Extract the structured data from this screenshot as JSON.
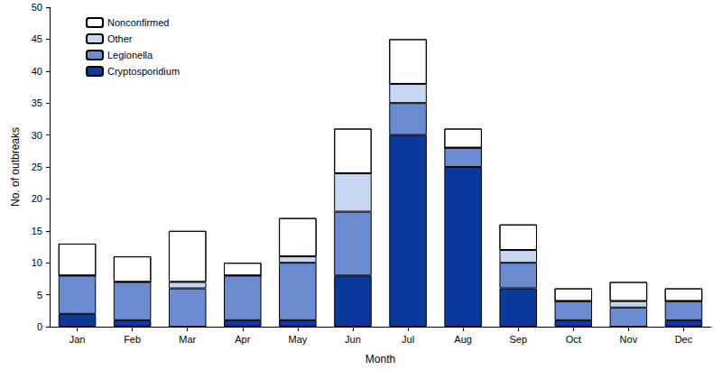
{
  "chart_data": {
    "type": "bar",
    "stacked": true,
    "x_label": "Month",
    "y_label": "No. of outbreaks",
    "categories": [
      "Jan",
      "Feb",
      "Mar",
      "Apr",
      "May",
      "Jun",
      "Jul",
      "Aug",
      "Sep",
      "Oct",
      "Nov",
      "Dec"
    ],
    "series": [
      {
        "name": "Cryptosporidium",
        "color": "#0b3a9c",
        "values": [
          2,
          1,
          0,
          1,
          1,
          8,
          30,
          25,
          6,
          1,
          0,
          1
        ]
      },
      {
        "name": "Legionella",
        "color": "#6a8bd0",
        "values": [
          6,
          6,
          6,
          7,
          9,
          10,
          5,
          3,
          4,
          3,
          3,
          3
        ]
      },
      {
        "name": "Other",
        "color": "#c8d7f1",
        "values": [
          0,
          0,
          1,
          0,
          1,
          6,
          3,
          0,
          2,
          0,
          1,
          0
        ]
      },
      {
        "name": "Nonconfirmed",
        "color": "#ffffff",
        "marker": "hatch",
        "values": [
          5,
          4,
          8,
          2,
          6,
          7,
          7,
          3,
          4,
          2,
          3,
          2
        ]
      }
    ],
    "ylim": [
      0,
      50
    ],
    "yticks": [
      0,
      5,
      10,
      15,
      20,
      25,
      30,
      35,
      40,
      45,
      50
    ],
    "grid": false,
    "legend": "upper left"
  }
}
